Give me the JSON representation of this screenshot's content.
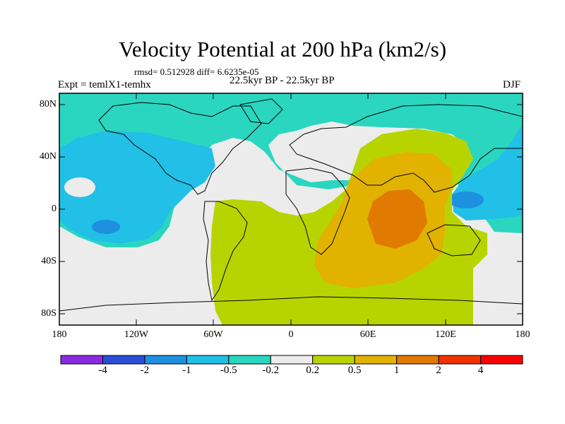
{
  "title": "Velocity Potential at 200 hPa (km2/s)",
  "stats": "rmsd= 0.512928 diff= 6.6235e-05",
  "experiment": "Expt = temlX1-temhx",
  "period": "22.5kyr BP - 22.5kyr BP",
  "season": "DJF",
  "y_ticks": [
    "80N",
    "40N",
    "0",
    "40S",
    "80S"
  ],
  "x_ticks": [
    "180",
    "120W",
    "60W",
    "0",
    "60E",
    "120E",
    "180"
  ],
  "colorbar": {
    "labels": [
      "-4",
      "-2",
      "-1",
      "-0.5",
      "-0.2",
      "0.2",
      "0.5",
      "1",
      "2",
      "4"
    ],
    "colors": [
      "#8a2be2",
      "#2a4fd6",
      "#1e90e0",
      "#22bfe6",
      "#2ad6c0",
      "#ececec",
      "#b8d400",
      "#e1b200",
      "#e07a00",
      "#f03200",
      "#ff0000"
    ]
  }
}
